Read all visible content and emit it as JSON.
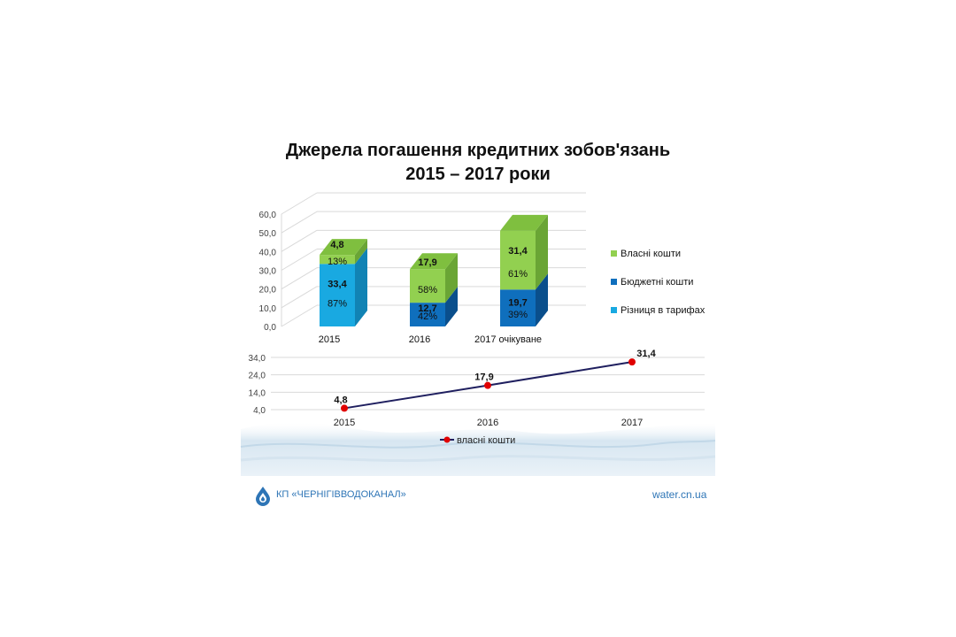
{
  "title_line1": "Джерела погашення кредитних зобов'язань",
  "title_line2": "2015 – 2017 роки",
  "chart_data": [
    {
      "type": "bar",
      "stacked": true,
      "categories": [
        "2015",
        "2016",
        "2017 очікуване"
      ],
      "ylim": [
        0,
        60
      ],
      "yticks": [
        "0,0",
        "10,0",
        "20,0",
        "30,0",
        "40,0",
        "50,0",
        "60,0"
      ],
      "series": [
        {
          "name": "Різниця в тарифах",
          "values": [
            33.4,
            0,
            0
          ],
          "labels": [
            "33,4",
            "",
            ""
          ],
          "pct": [
            "87%",
            "",
            ""
          ],
          "color": "#19a9e1",
          "side": "#1183b4",
          "top": "#51c1ec"
        },
        {
          "name": "Бюджетні кошти",
          "values": [
            0,
            12.7,
            19.7
          ],
          "labels": [
            "",
            "12,7",
            "19,7"
          ],
          "pct": [
            "",
            "42%",
            "39%"
          ],
          "color": "#0f6fbd",
          "side": "#0a4f8c",
          "top": "#3a8fd2"
        },
        {
          "name": "Власні кошти",
          "values": [
            4.8,
            17.9,
            31.4
          ],
          "labels": [
            "4,8",
            "17,9",
            "31,4"
          ],
          "pct": [
            "13%",
            "58%",
            "61%"
          ],
          "color": "#92d050",
          "side": "#6aa535",
          "top": "#7fbf3f"
        }
      ],
      "legend_order": [
        "Власні кошти",
        "Бюджетні кошти",
        "Різниця в тарифах"
      ],
      "legend_position": "right",
      "grid": true
    },
    {
      "type": "line",
      "categories": [
        "2015",
        "2016",
        "2017"
      ],
      "ylim": [
        4,
        34
      ],
      "yticks": [
        "4,0",
        "14,0",
        "24,0",
        "34,0"
      ],
      "series": [
        {
          "name": "власні кошти",
          "values": [
            4.8,
            17.9,
            31.4
          ],
          "labels": [
            "4,8",
            "17,9",
            "31,4"
          ],
          "color": "#1f1f5f",
          "marker_color": "#e00000"
        }
      ],
      "legend_position": "bottom",
      "grid": true
    }
  ],
  "footer": {
    "org": "КП «ЧЕРНІГІВВОДОКАНАЛ»",
    "url": "water.cn.ua"
  }
}
